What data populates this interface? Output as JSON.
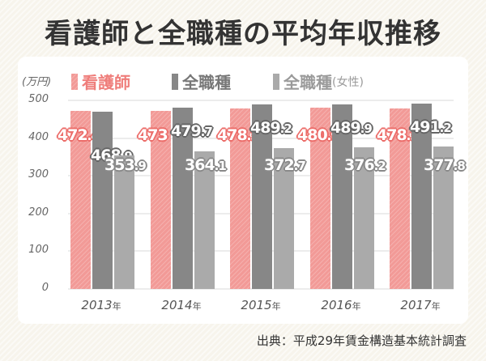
{
  "title": "看護師と全職種の平均年収推移",
  "legend": [
    {
      "label": "看護師",
      "suffix": "",
      "color": "#f29a97",
      "text_color": "#ef7e7b"
    },
    {
      "label": "全職種",
      "suffix": "",
      "color": "#878787",
      "text_color": "#777777"
    },
    {
      "label": "全職種",
      "suffix": "(女性)",
      "color": "#aaaaaa",
      "text_color": "#9a9a9a"
    }
  ],
  "unit_label": "(万円)",
  "source": "出典：平成29年賃金構造基本統計調査",
  "chart_data": {
    "type": "bar",
    "title": "看護師と全職種の平均年収推移",
    "xlabel": "",
    "ylabel": "(万円)",
    "ylim": [
      0,
      500
    ],
    "yticks": [
      0,
      100,
      200,
      300,
      400,
      500
    ],
    "grid": true,
    "legend_position": "top",
    "categories": [
      "2013年",
      "2014年",
      "2015年",
      "2016年",
      "2017年"
    ],
    "series": [
      {
        "name": "看護師",
        "color": "#f29a97",
        "values": [
          472.4,
          473,
          478.3,
          480.9,
          478.3
        ]
      },
      {
        "name": "全職種",
        "color": "#878787",
        "values": [
          468.9,
          479.7,
          489.2,
          489.9,
          491.2
        ]
      },
      {
        "name": "全職種(女性)",
        "color": "#aaaaaa",
        "values": [
          353.9,
          364.1,
          372.7,
          376.2,
          377.8
        ]
      }
    ]
  }
}
